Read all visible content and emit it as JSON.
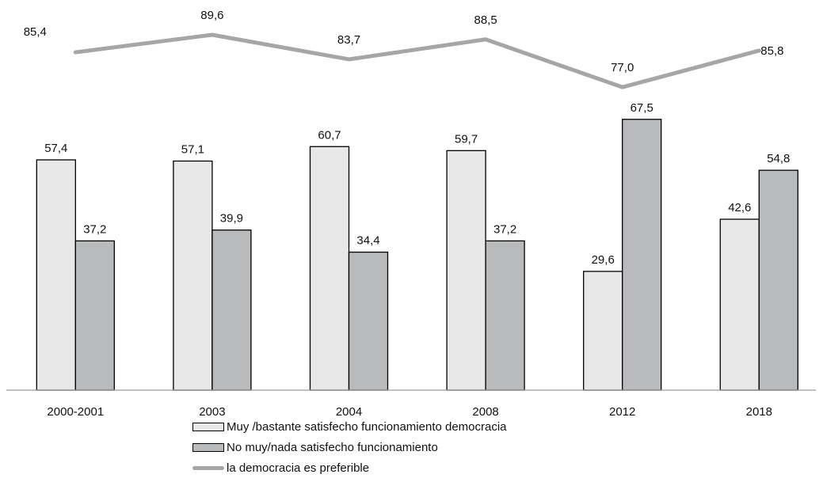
{
  "chart_data": {
    "type": "bar",
    "title": "",
    "xlabel": "",
    "ylabel": "",
    "ylim": [
      0,
      100
    ],
    "grid": false,
    "legend_position": "bottom",
    "categories": [
      "2000-2001",
      "2003",
      "2004",
      "2008",
      "2012",
      "2018"
    ],
    "series": [
      {
        "name": "Muy /bastante satisfecho funcionamiento democracia",
        "kind": "bar",
        "color": "#e8e8e8",
        "values": [
          57.4,
          57.1,
          60.7,
          59.7,
          29.6,
          42.6
        ],
        "value_labels": [
          "57,4",
          "57,1",
          "60,7",
          "59,7",
          "29,6",
          "42,6"
        ]
      },
      {
        "name": "No muy/nada satisfecho funcionamiento",
        "kind": "bar",
        "color": "#b9babb",
        "values": [
          37.2,
          39.9,
          34.4,
          37.2,
          67.5,
          54.8
        ],
        "value_labels": [
          "37,2",
          "39,9",
          "34,4",
          "37,2",
          "67,5",
          "54,8"
        ]
      },
      {
        "name": "la democracia es preferible",
        "kind": "line",
        "color": "#a6a6a6",
        "values": [
          85.4,
          89.6,
          83.7,
          88.5,
          77.0,
          85.8
        ],
        "value_labels": [
          "85,4",
          "89,6",
          "83,7",
          "88,5",
          "77,0",
          "85,8"
        ]
      }
    ]
  }
}
